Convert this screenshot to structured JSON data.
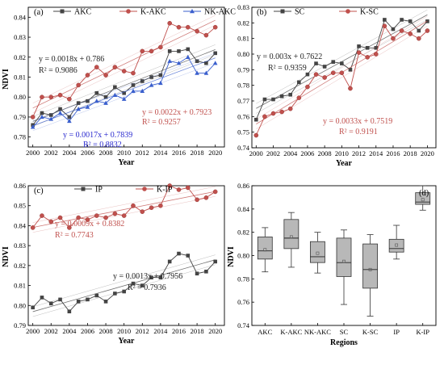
{
  "chart_data": [
    {
      "panel": "(a)",
      "type": "line",
      "xlabel": "Year",
      "ylabel": "NDVI",
      "xlim": [
        1999.5,
        2021
      ],
      "ylim": [
        0.775,
        0.845
      ],
      "xticks": [
        2000,
        2002,
        2004,
        2006,
        2008,
        2010,
        2012,
        2014,
        2016,
        2018,
        2020
      ],
      "yticks": [
        0.78,
        0.79,
        0.8,
        0.81,
        0.82,
        0.83,
        0.84
      ],
      "legend_position": "top",
      "x": [
        2000,
        2001,
        2002,
        2003,
        2004,
        2005,
        2006,
        2007,
        2008,
        2009,
        2010,
        2011,
        2012,
        2013,
        2014,
        2015,
        2016,
        2017,
        2018,
        2019,
        2020
      ],
      "series": [
        {
          "name": "AKC",
          "color": "#444444",
          "marker": "square",
          "values": [
            0.786,
            0.792,
            0.791,
            0.794,
            0.79,
            0.797,
            0.798,
            0.802,
            0.8,
            0.805,
            0.802,
            0.806,
            0.808,
            0.81,
            0.811,
            0.823,
            0.823,
            0.824,
            0.818,
            0.817,
            0.822
          ],
          "trend": {
            "slope": 0.0018,
            "intercept": 0.786,
            "equation": "y = 0.0018x + 0.786",
            "r2": "R² = 0.9086",
            "color": "#222222"
          }
        },
        {
          "name": "K-AKC",
          "color": "#c0504d",
          "marker": "circle",
          "values": [
            0.79,
            0.8,
            0.8,
            0.801,
            0.799,
            0.806,
            0.811,
            0.815,
            0.811,
            0.815,
            0.813,
            0.812,
            0.823,
            0.823,
            0.825,
            0.837,
            0.835,
            0.835,
            0.833,
            0.831,
            0.835
          ],
          "trend": {
            "slope": 0.0022,
            "intercept": 0.7923,
            "equation": "y = 0.0022x + 0.7923",
            "r2": "R² = 0.9257",
            "color": "#c0504d"
          }
        },
        {
          "name": "NK-AKC",
          "color": "#3a5fcd",
          "marker": "triangle",
          "values": [
            0.785,
            0.79,
            0.789,
            0.792,
            0.788,
            0.794,
            0.795,
            0.798,
            0.797,
            0.801,
            0.799,
            0.803,
            0.803,
            0.806,
            0.807,
            0.818,
            0.817,
            0.82,
            0.812,
            0.812,
            0.817
          ],
          "trend": {
            "slope": 0.0017,
            "intercept": 0.7839,
            "equation": "y = 0.0017x + 0.7839",
            "r2": "R² = 0.8832",
            "color": "#2a2acf"
          }
        }
      ]
    },
    {
      "panel": "(b)",
      "type": "line",
      "xlabel": "Year",
      "ylabel": "",
      "xlim": [
        1999.5,
        2021
      ],
      "ylim": [
        0.74,
        0.83
      ],
      "xticks": [
        2000,
        2002,
        2004,
        2006,
        2008,
        2010,
        2012,
        2014,
        2016,
        2018,
        2020
      ],
      "yticks": [
        0.74,
        0.75,
        0.76,
        0.77,
        0.78,
        0.79,
        0.8,
        0.81,
        0.82,
        0.83
      ],
      "legend_position": "top",
      "x": [
        2000,
        2001,
        2002,
        2003,
        2004,
        2005,
        2006,
        2007,
        2008,
        2009,
        2010,
        2011,
        2012,
        2013,
        2014,
        2015,
        2016,
        2017,
        2018,
        2019,
        2020
      ],
      "series": [
        {
          "name": "SC",
          "color": "#444444",
          "marker": "square",
          "values": [
            0.758,
            0.771,
            0.771,
            0.773,
            0.774,
            0.782,
            0.787,
            0.794,
            0.792,
            0.795,
            0.794,
            0.79,
            0.805,
            0.804,
            0.804,
            0.822,
            0.816,
            0.822,
            0.821,
            0.815,
            0.821
          ],
          "trend": {
            "slope": 0.003,
            "intercept": 0.7622,
            "equation": "y = 0.003x + 0.7622",
            "r2": "R² = 0.9359",
            "color": "#222222"
          }
        },
        {
          "name": "K-SC",
          "color": "#c0504d",
          "marker": "circle",
          "values": [
            0.748,
            0.76,
            0.762,
            0.763,
            0.765,
            0.772,
            0.779,
            0.787,
            0.785,
            0.788,
            0.788,
            0.778,
            0.801,
            0.798,
            0.8,
            0.818,
            0.81,
            0.815,
            0.813,
            0.81,
            0.815
          ],
          "trend": {
            "slope": 0.0033,
            "intercept": 0.7519,
            "equation": "y = 0.0033x + 0.7519",
            "r2": "R² = 0.9191",
            "color": "#c0504d"
          }
        }
      ]
    },
    {
      "panel": "(c)",
      "type": "line",
      "xlabel": "Year",
      "ylabel": "NDVI",
      "xlim": [
        1999.5,
        2021
      ],
      "ylim": [
        0.79,
        0.86
      ],
      "xticks": [
        2000,
        2002,
        2004,
        2006,
        2008,
        2010,
        2012,
        2014,
        2016,
        2018,
        2020
      ],
      "yticks": [
        0.79,
        0.8,
        0.81,
        0.82,
        0.83,
        0.84,
        0.85,
        0.86
      ],
      "legend_position": "top",
      "x": [
        2000,
        2001,
        2002,
        2003,
        2004,
        2005,
        2006,
        2007,
        2008,
        2009,
        2010,
        2011,
        2012,
        2013,
        2014,
        2015,
        2016,
        2017,
        2018,
        2019,
        2020
      ],
      "series": [
        {
          "name": "IP",
          "color": "#444444",
          "marker": "square",
          "values": [
            0.799,
            0.804,
            0.801,
            0.803,
            0.797,
            0.802,
            0.803,
            0.805,
            0.802,
            0.806,
            0.807,
            0.811,
            0.81,
            0.814,
            0.814,
            0.822,
            0.826,
            0.825,
            0.816,
            0.817,
            0.822
          ],
          "trend": {
            "slope": 0.0013,
            "intercept": 0.7956,
            "equation": "y = 0.0013x + 0.7956",
            "r2": "R² = 0.7936",
            "color": "#222222"
          }
        },
        {
          "name": "K-IP",
          "color": "#c0504d",
          "marker": "circle",
          "values": [
            0.839,
            0.845,
            0.842,
            0.844,
            0.839,
            0.844,
            0.843,
            0.845,
            0.844,
            0.846,
            0.845,
            0.85,
            0.847,
            0.849,
            0.85,
            0.86,
            0.858,
            0.859,
            0.853,
            0.854,
            0.857
          ],
          "trend": {
            "slope": 0.0009,
            "intercept": 0.8382,
            "equation": "y = 0.0009x + 0.8382",
            "r2": "R² = 0.7743",
            "color": "#c0504d"
          }
        }
      ]
    },
    {
      "panel": "(d)",
      "type": "box",
      "xlabel": "Regions",
      "ylabel": "NDVI",
      "ylim": [
        0.74,
        0.86
      ],
      "yticks": [
        0.74,
        0.76,
        0.78,
        0.8,
        0.82,
        0.84,
        0.86
      ],
      "categories": [
        "AKC",
        "K-AKC",
        "NK-AKC",
        "SC",
        "K-SC",
        "IP",
        "K-IP"
      ],
      "boxes": [
        {
          "min": 0.786,
          "q1": 0.797,
          "median": 0.804,
          "q3": 0.816,
          "max": 0.824,
          "mean": 0.805
        },
        {
          "min": 0.79,
          "q1": 0.806,
          "median": 0.815,
          "q3": 0.831,
          "max": 0.837,
          "mean": 0.816
        },
        {
          "min": 0.785,
          "q1": 0.794,
          "median": 0.799,
          "q3": 0.812,
          "max": 0.82,
          "mean": 0.802
        },
        {
          "min": 0.758,
          "q1": 0.782,
          "median": 0.794,
          "q3": 0.815,
          "max": 0.822,
          "mean": 0.795
        },
        {
          "min": 0.748,
          "q1": 0.772,
          "median": 0.788,
          "q3": 0.81,
          "max": 0.818,
          "mean": 0.788
        },
        {
          "min": 0.797,
          "q1": 0.803,
          "median": 0.806,
          "q3": 0.814,
          "max": 0.826,
          "mean": 0.809
        },
        {
          "min": 0.839,
          "q1": 0.844,
          "median": 0.846,
          "q3": 0.854,
          "max": 0.86,
          "mean": 0.848
        }
      ],
      "box_color": "#b8b8b8"
    }
  ]
}
